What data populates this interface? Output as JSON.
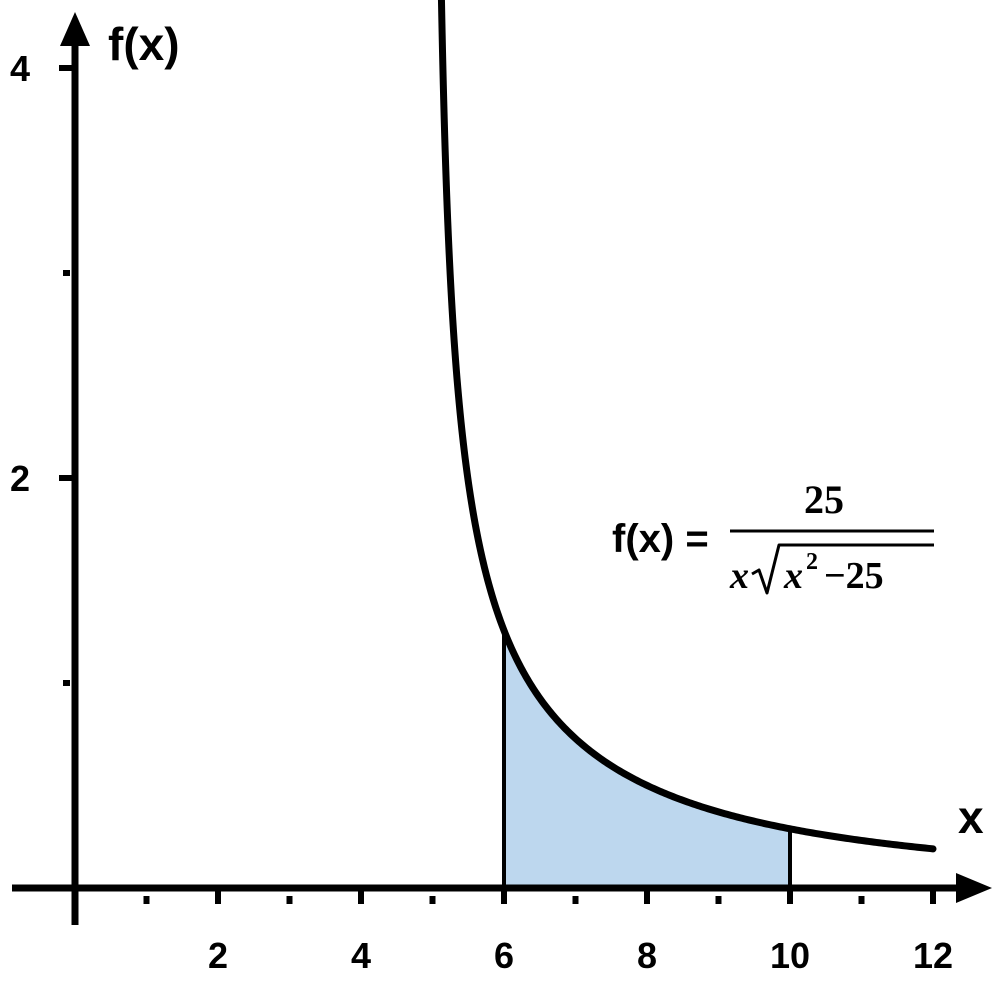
{
  "chart_data": {
    "type": "area",
    "function": "f(x) = 25 / (x * sqrt(x^2 - 25))",
    "curve_domain": [
      5.1,
      12
    ],
    "shaded_interval": [
      6,
      10
    ],
    "curve_sample": {
      "x": [
        5.1,
        5.5,
        6,
        7,
        8,
        9,
        10,
        11,
        12
      ],
      "y": [
        4.0,
        1.98,
        1.26,
        0.73,
        0.5,
        0.37,
        0.29,
        0.23,
        0.19
      ]
    },
    "xlabel": "x",
    "ylabel": "f(x)",
    "xlim": [
      0,
      12
    ],
    "ylim": [
      0,
      4
    ],
    "x_tick_labels": [
      "2",
      "4",
      "6",
      "8",
      "10",
      "12"
    ],
    "y_tick_labels": [
      "2",
      "4"
    ],
    "x_minor_ticks": [
      1,
      3,
      5,
      7,
      9,
      11
    ],
    "y_minor_ticks": [
      1,
      3
    ],
    "grid": false,
    "annotation": {
      "lhs": "f(x) =",
      "numerator": "25",
      "denominator_prefix": "x",
      "radicand_base": "x",
      "radicand_exponent": "2",
      "radicand_tail": "−25"
    },
    "colors": {
      "curve": "#000000",
      "fill": "#bdd7ee",
      "axis": "#000000"
    }
  }
}
